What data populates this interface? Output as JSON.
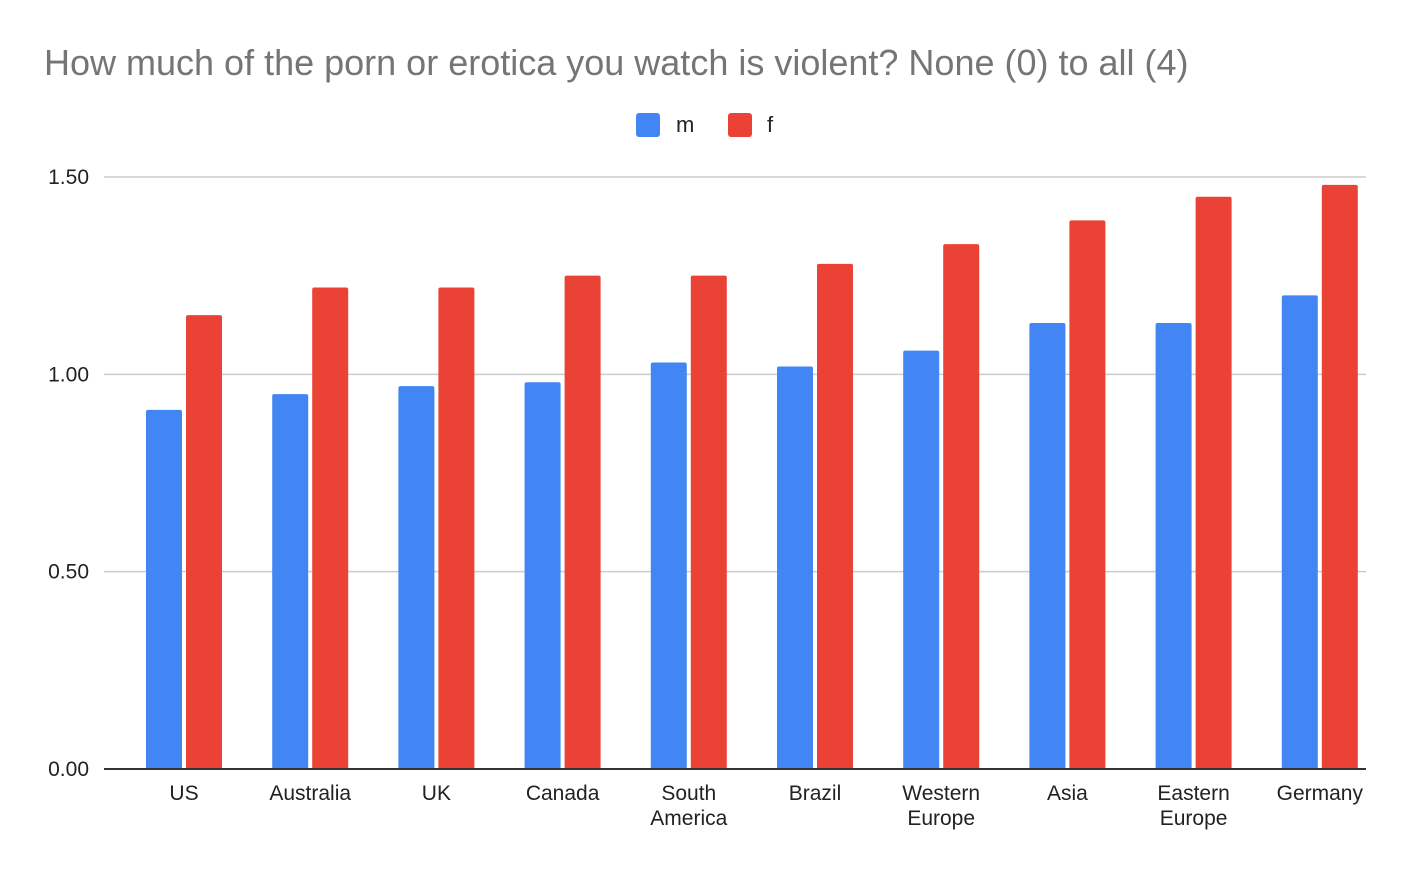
{
  "chart_data": {
    "type": "bar",
    "title": "How much of the porn or erotica you watch is violent? None (0) to all (4)",
    "categories": [
      [
        "US"
      ],
      [
        "Australia"
      ],
      [
        "UK"
      ],
      [
        "Canada"
      ],
      [
        "South",
        "America"
      ],
      [
        "Brazil"
      ],
      [
        "Western",
        "Europe"
      ],
      [
        "Asia"
      ],
      [
        "Eastern",
        "Europe"
      ],
      [
        "Germany"
      ]
    ],
    "series": [
      {
        "name": "m",
        "color": "#4285f4",
        "values": [
          0.91,
          0.95,
          0.97,
          0.98,
          1.03,
          1.02,
          1.06,
          1.13,
          1.13,
          1.2
        ]
      },
      {
        "name": "f",
        "color": "#ea4335",
        "values": [
          1.15,
          1.22,
          1.22,
          1.25,
          1.25,
          1.28,
          1.33,
          1.39,
          1.45,
          1.48
        ]
      }
    ],
    "ylim": [
      0,
      1.5
    ],
    "yticks": [
      "0.00",
      "0.50",
      "1.00",
      "1.50"
    ],
    "ytick_values": [
      0,
      0.5,
      1.0,
      1.5
    ],
    "legend": "top-center",
    "grid": true,
    "gridline_color": "#cccccc",
    "axis_color": "#333333"
  }
}
